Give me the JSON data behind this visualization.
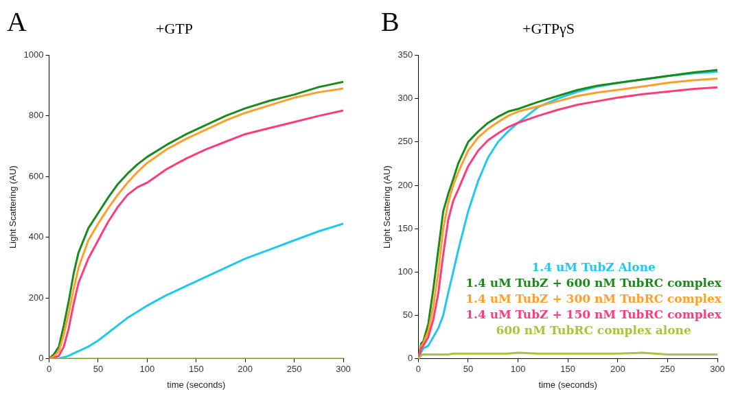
{
  "chart_data": [
    {
      "type": "line",
      "title": "+GTP",
      "xlabel": "time (seconds)",
      "ylabel": "Light Scattering (AU)",
      "annotations": [
        "A"
      ],
      "x": [
        0,
        5,
        10,
        15,
        20,
        25,
        30,
        40,
        50,
        60,
        70,
        80,
        90,
        100,
        120,
        140,
        160,
        180,
        200,
        225,
        250,
        275,
        300
      ],
      "xlim": [
        0,
        300
      ],
      "xticks": [
        0,
        50,
        100,
        150,
        200,
        250,
        300
      ],
      "ylim": [
        0,
        1000
      ],
      "yticks": [
        0,
        200,
        400,
        600,
        800,
        1000
      ],
      "grid": false,
      "legend": false,
      "marker": "none",
      "line_style": "solid",
      "series": [
        {
          "color": "#1a8a1a",
          "values": [
            0,
            15,
            40,
            110,
            190,
            280,
            350,
            430,
            480,
            530,
            575,
            610,
            640,
            665,
            705,
            740,
            770,
            800,
            825,
            850,
            870,
            895,
            912
          ]
        },
        {
          "color": "#ff9f2a",
          "values": [
            0,
            8,
            25,
            80,
            150,
            230,
            300,
            390,
            445,
            495,
            540,
            580,
            615,
            645,
            690,
            725,
            755,
            785,
            810,
            835,
            860,
            878,
            890
          ]
        },
        {
          "color": "#ff3b7a",
          "values": [
            0,
            3,
            10,
            40,
            100,
            180,
            250,
            330,
            390,
            450,
            500,
            540,
            565,
            580,
            625,
            660,
            690,
            715,
            740,
            760,
            780,
            800,
            818
          ]
        },
        {
          "color": "#1ec8f0",
          "values": [
            null,
            null,
            2,
            5,
            10,
            18,
            25,
            40,
            60,
            85,
            110,
            135,
            155,
            175,
            210,
            240,
            270,
            300,
            330,
            360,
            390,
            420,
            445
          ]
        },
        {
          "color": "#a8c43a",
          "values": [
            0,
            0,
            0,
            0,
            0,
            0,
            0,
            0,
            0,
            0,
            0,
            0,
            0,
            0,
            0,
            0,
            0,
            0,
            0,
            0,
            0,
            0,
            0
          ]
        }
      ]
    },
    {
      "type": "line",
      "title": "+GTPγS",
      "xlabel": "time (seconds)",
      "ylabel": "Light Scattering (AU)",
      "annotations": [
        "B"
      ],
      "x": [
        0,
        3,
        5,
        10,
        15,
        20,
        25,
        30,
        35,
        40,
        50,
        60,
        70,
        80,
        90,
        100,
        120,
        140,
        160,
        180,
        200,
        225,
        250,
        275,
        300
      ],
      "xlim": [
        0,
        300
      ],
      "xticks": [
        0,
        50,
        100,
        150,
        200,
        250,
        300
      ],
      "ylim": [
        0,
        350
      ],
      "yticks": [
        0,
        50,
        100,
        150,
        200,
        250,
        300,
        350
      ],
      "grid": false,
      "legend": "bottom right",
      "marker": "none",
      "line_style": "solid",
      "series": [
        {
          "name": "1.4 uM TubZ Alone",
          "color": "#1ec8f0",
          "values": [
            0,
            8,
            12,
            15,
            25,
            35,
            50,
            76,
            100,
            125,
            170,
            205,
            232,
            250,
            262,
            272,
            290,
            300,
            308,
            314,
            318,
            322,
            326,
            329,
            331
          ]
        },
        {
          "name": "1.4 uM TubZ + 600 nM TubRC complex",
          "color": "#1a8a1a",
          "values": [
            0,
            18,
            20,
            40,
            80,
            125,
            170,
            190,
            207,
            225,
            250,
            262,
            272,
            279,
            285,
            288,
            296,
            303,
            310,
            315,
            318,
            322,
            326,
            330,
            333
          ]
        },
        {
          "name": "1.4 uM TubZ + 300 nM TubRC complex",
          "color": "#ff9f2a",
          "values": [
            0,
            15,
            18,
            32,
            60,
            100,
            150,
            180,
            200,
            215,
            240,
            255,
            265,
            273,
            280,
            285,
            291,
            297,
            303,
            307,
            310,
            314,
            318,
            321,
            323
          ]
        },
        {
          "name": "1.4 uM TubZ + 150 nM TubRC complex",
          "color": "#ff3b7a",
          "values": [
            0,
            12,
            15,
            25,
            45,
            75,
            120,
            160,
            182,
            195,
            222,
            240,
            252,
            260,
            267,
            272,
            280,
            287,
            293,
            297,
            301,
            305,
            308,
            311,
            313
          ]
        },
        {
          "name": "600 nM TubRC complex alone",
          "color": "#a8c43a",
          "values": [
            0,
            4,
            5,
            5,
            5,
            5,
            5,
            5,
            6,
            6,
            6,
            6,
            6,
            6,
            6,
            7,
            6,
            6,
            6,
            6,
            6,
            7,
            5,
            5,
            5
          ]
        }
      ]
    }
  ]
}
